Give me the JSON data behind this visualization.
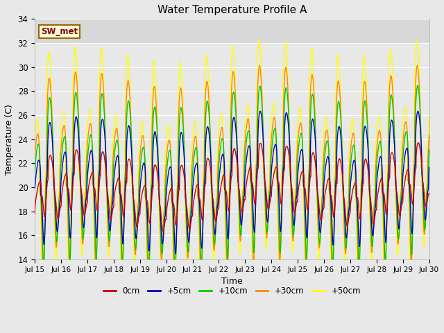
{
  "title": "Water Temperature Profile A",
  "xlabel": "Time",
  "ylabel": "Temperature (C)",
  "ylim": [
    14,
    34
  ],
  "xlim": [
    0,
    360
  ],
  "xtick_labels": [
    "Jul 15",
    "Jul 16",
    "Jul 17",
    "Jul 18",
    "Jul 19",
    "Jul 20",
    "Jul 21",
    "Jul 22",
    "Jul 23",
    "Jul 24",
    "Jul 25",
    "Jul 26",
    "Jul 27",
    "Jul 28",
    "Jul 29",
    "Jul 30"
  ],
  "xtick_positions": [
    0,
    24,
    48,
    72,
    96,
    120,
    144,
    168,
    192,
    216,
    240,
    264,
    288,
    312,
    336,
    360
  ],
  "ytick_positions": [
    14,
    16,
    18,
    20,
    22,
    24,
    26,
    28,
    30,
    32,
    34
  ],
  "line_colors": [
    "#cc0000",
    "#0000cc",
    "#00cc00",
    "#ff8800",
    "#ffff00"
  ],
  "line_labels": [
    "0cm",
    "+5cm",
    "+10cm",
    "+30cm",
    "+50cm"
  ],
  "sw_met_label": "SW_met",
  "plot_bg_color": "#e8e8e8",
  "upper_band_color": "#d8d8d8",
  "upper_band_ymin": 32,
  "upper_band_ymax": 34,
  "fig_bg_color": "#e8e8e8",
  "grid_color": "#ffffff",
  "period_hours": 12,
  "n_points": 2161,
  "base_mean": 19.0,
  "amp_0cm": 2.0,
  "amp_5cm": 4.0,
  "amp_10cm": 5.5,
  "amp_30cm": 6.5,
  "amp_50cm": 8.0,
  "phase_0cm": 0.0,
  "phase_5cm": 0.3,
  "phase_10cm": 0.5,
  "phase_30cm": 0.7,
  "phase_50cm": 0.9,
  "sharpness": 2.5
}
